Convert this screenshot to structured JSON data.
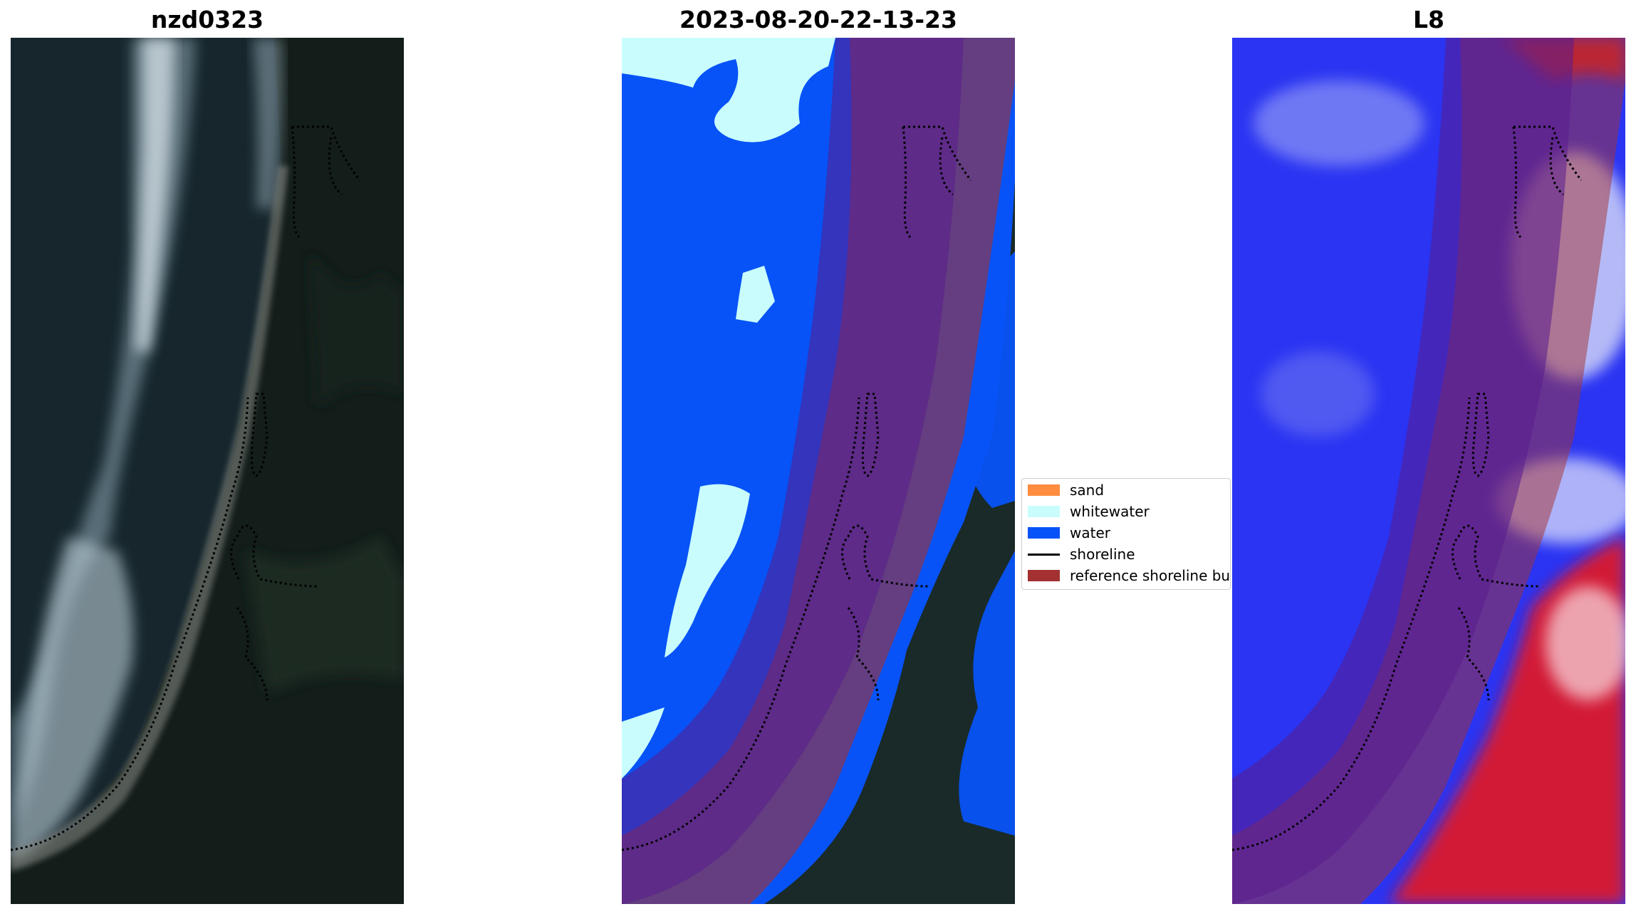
{
  "panels": [
    {
      "title": "nzd0323"
    },
    {
      "title": "2023-08-20-22-13-23"
    },
    {
      "title": "L8"
    }
  ],
  "legend": {
    "items": [
      {
        "label": "sand",
        "color": "#ff8c3f",
        "kind": "patch"
      },
      {
        "label": "whitewater",
        "color": "#c9fdfd",
        "kind": "patch"
      },
      {
        "label": "water",
        "color": "#0753f7",
        "kind": "patch"
      },
      {
        "label": "shoreline",
        "color": "#000000",
        "kind": "line"
      },
      {
        "label": "reference shoreline bu",
        "color": "#a33131",
        "kind": "patch"
      }
    ]
  }
}
